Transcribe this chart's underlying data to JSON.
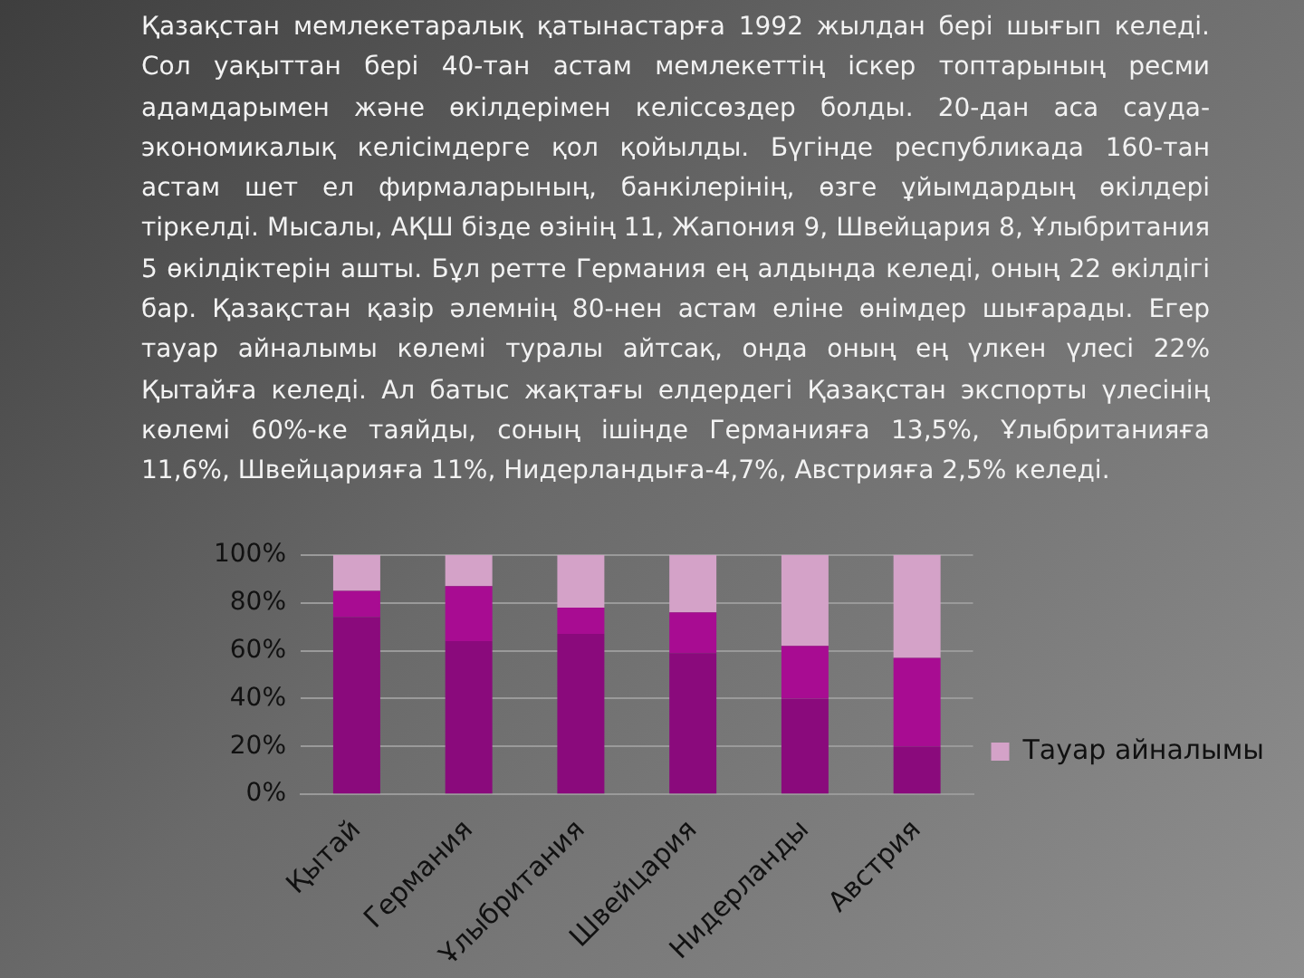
{
  "chart_data": {
    "type": "bar",
    "stacked": true,
    "title": "Қазақстан мемлекетаралық қатынастарға 1992 жылдан бері шығып келеді. Сол уақыттан бері 40-тан астам мемлекеттің іскер топтарының ресми адамдарымен және өкілдерімен келіссөздер болды. 20-дан аса сауда-экономикалық келісімдерге қол қойылды. Бүгінде республикада 160-тан астам шет ел фирмаларының, банкілерінің, өзге ұйымдардың өкілдері тіркелді. Мысалы, АҚШ бізде өзінің 11, Жапония 9, Швейцария 8, Ұлыбритания 5 өкілдіктерін ашты. Бұл ретте Германия ең алдында келеді, оның 22 өкілдігі бар. Қазақстан қазір әлемнің 80-нен астам еліне өнімдер шығарады. Егер тауар айналымы көлемі туралы айтсақ, онда оның ең үлкен үлесі 22% Қытайға келеді. Ал батыс жақтағы елдердегі Қазақстан экспорты үлесінің көлемі 60%-ке таяйды, соның ішінде Германияға 13,5%, Ұлыбританияға 11,6%, Швейцарияға 11%, Нидерландыға-4,7%, Австрияға 2,5% келеді.",
    "categories": [
      "Қытай",
      "Германия",
      "Ұлыбритания",
      "Швейцария",
      "Нидерланды",
      "Австрия"
    ],
    "series": [
      {
        "color": "#8a0a7c",
        "values": [
          74,
          64,
          67,
          59,
          40,
          20
        ]
      },
      {
        "color": "#a80c92",
        "values": [
          11,
          23,
          11,
          17,
          22,
          37
        ]
      },
      {
        "name": "Тауар айналымы",
        "color": "#d4a2c8",
        "values": [
          15,
          13,
          22,
          24,
          38,
          43
        ]
      }
    ],
    "ylim": [
      0,
      100
    ],
    "yticks": [
      {
        "value": 0,
        "label": "0%"
      },
      {
        "value": 20,
        "label": "20%"
      },
      {
        "value": 40,
        "label": "40%"
      },
      {
        "value": 60,
        "label": "60%"
      },
      {
        "value": 80,
        "label": "80%"
      },
      {
        "value": 100,
        "label": "100%"
      }
    ],
    "grid": "y",
    "legend": "right"
  }
}
